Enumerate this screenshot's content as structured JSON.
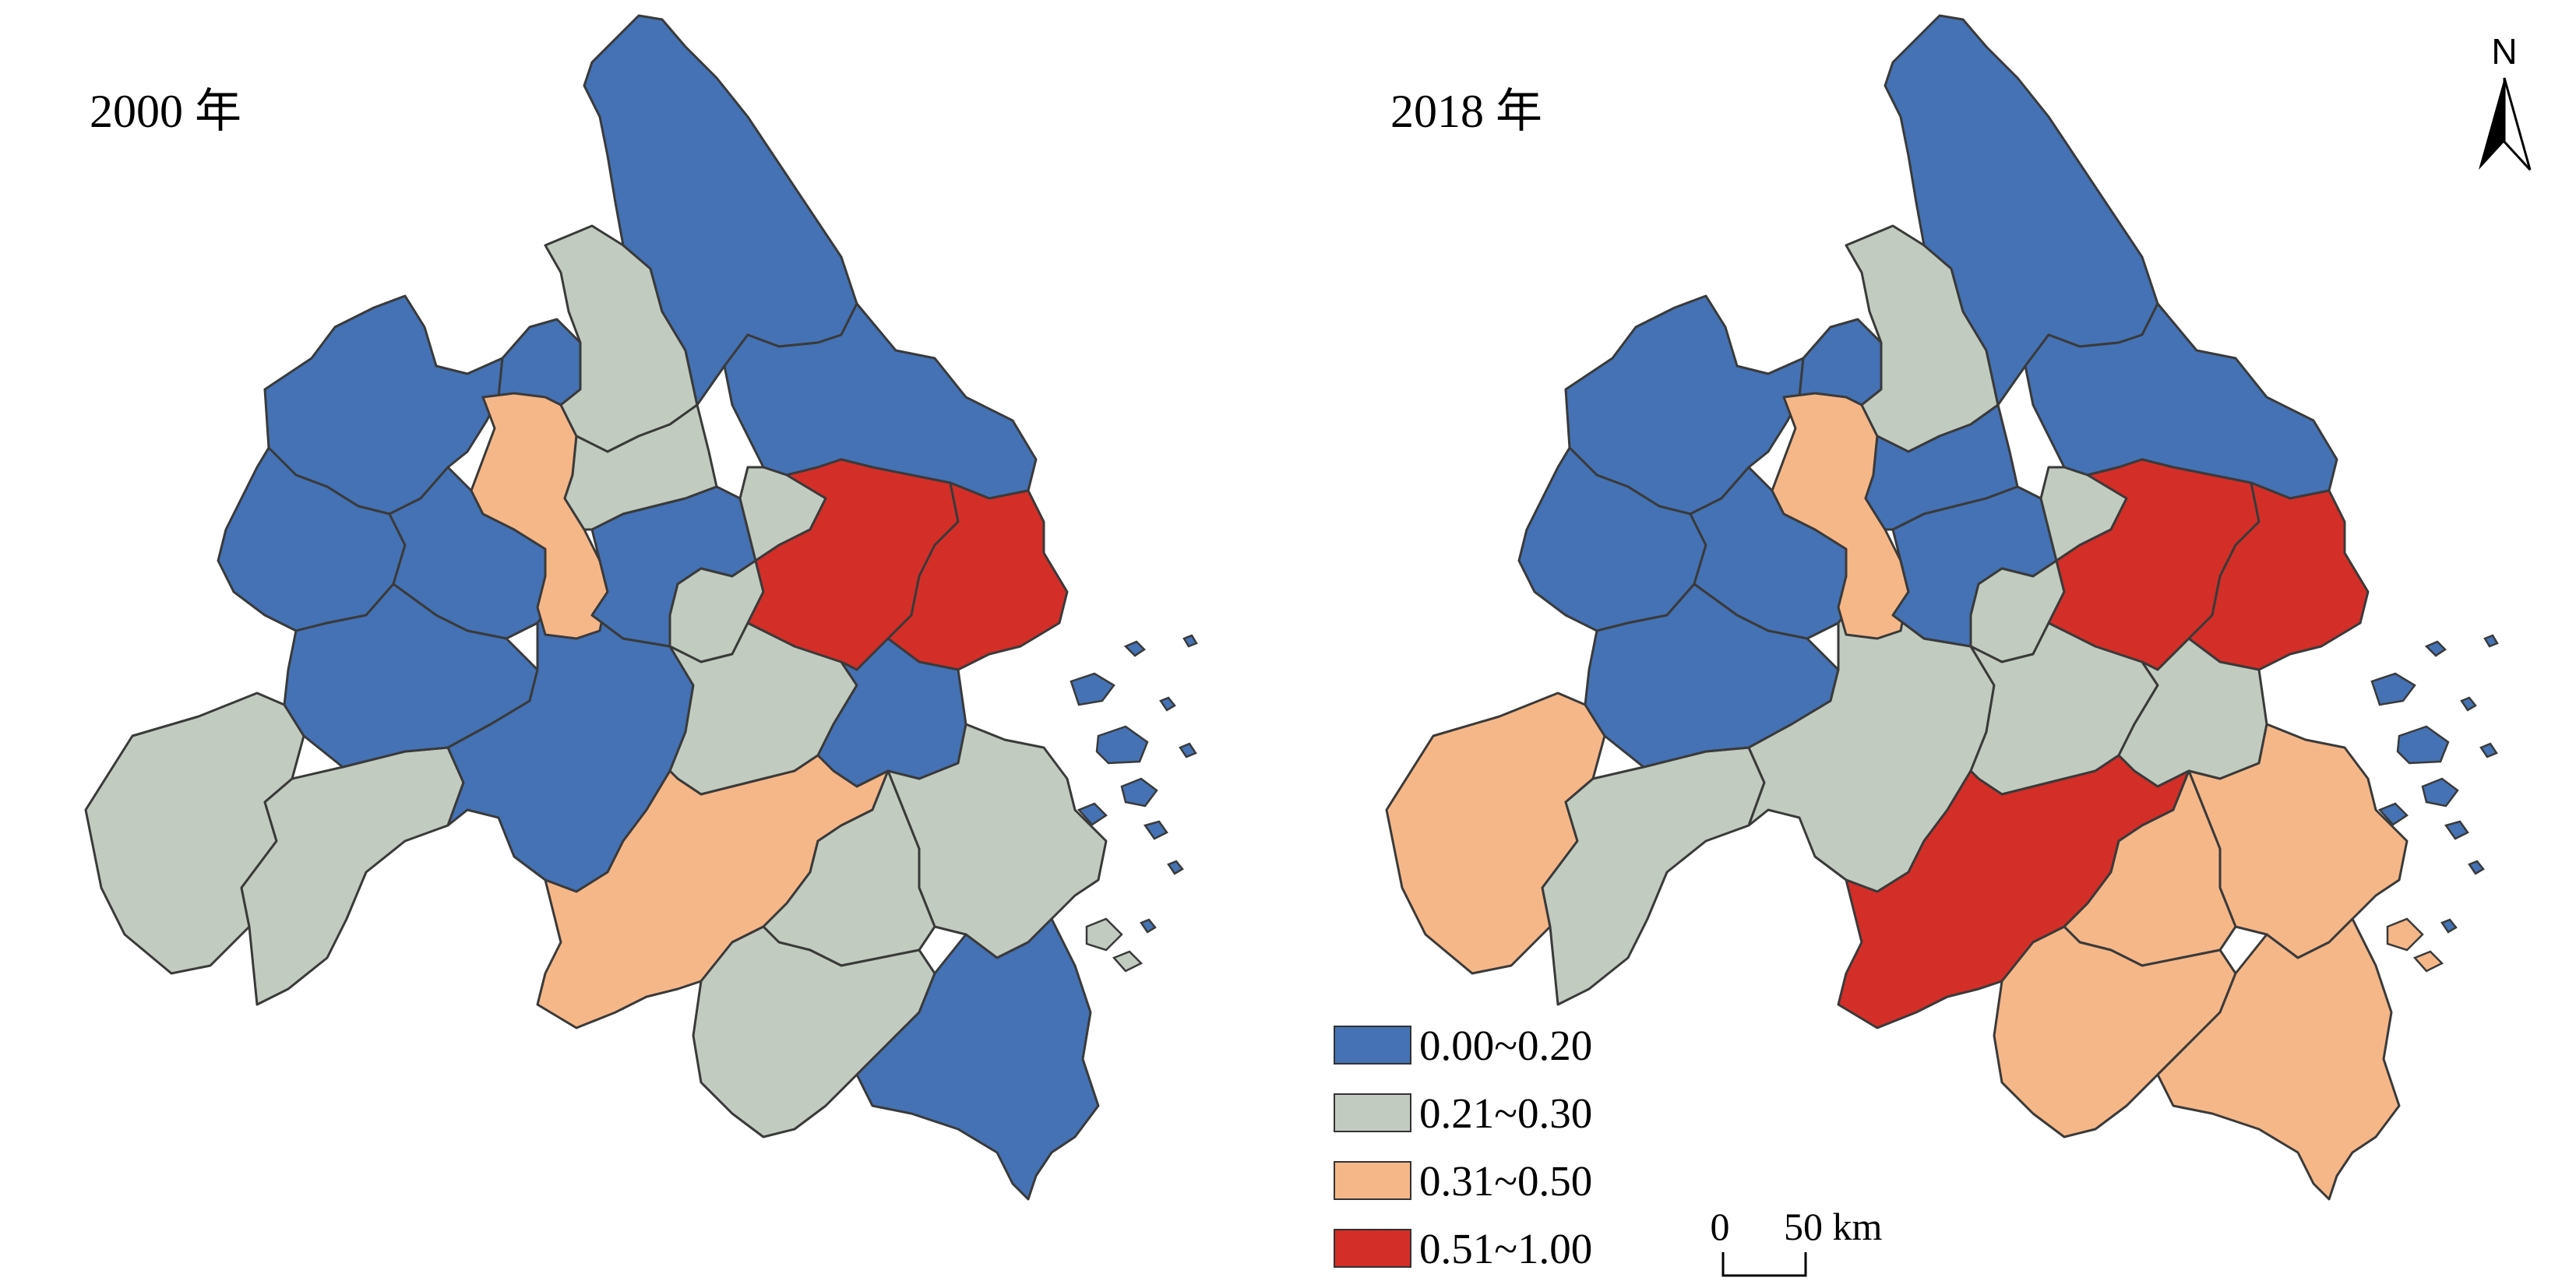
{
  "maps": [
    {
      "title": "2000 年"
    },
    {
      "title": "2018 年"
    }
  ],
  "legend": {
    "items": [
      {
        "label": "0.00~0.20",
        "color": "#4472b4"
      },
      {
        "label": "0.21~0.30",
        "color": "#c2cbbf"
      },
      {
        "label": "0.31~0.50",
        "color": "#f6b788"
      },
      {
        "label": "0.51~1.00",
        "color": "#d42e28"
      }
    ]
  },
  "scale_bar": {
    "start_label": "0",
    "end_label": "50 km"
  },
  "north_arrow": {
    "label": "N"
  },
  "colors": {
    "blue": "#4472b4",
    "gray": "#c2cbbf",
    "orange": "#f6b788",
    "red": "#d42e28",
    "outline": "#3a3a3a"
  }
}
